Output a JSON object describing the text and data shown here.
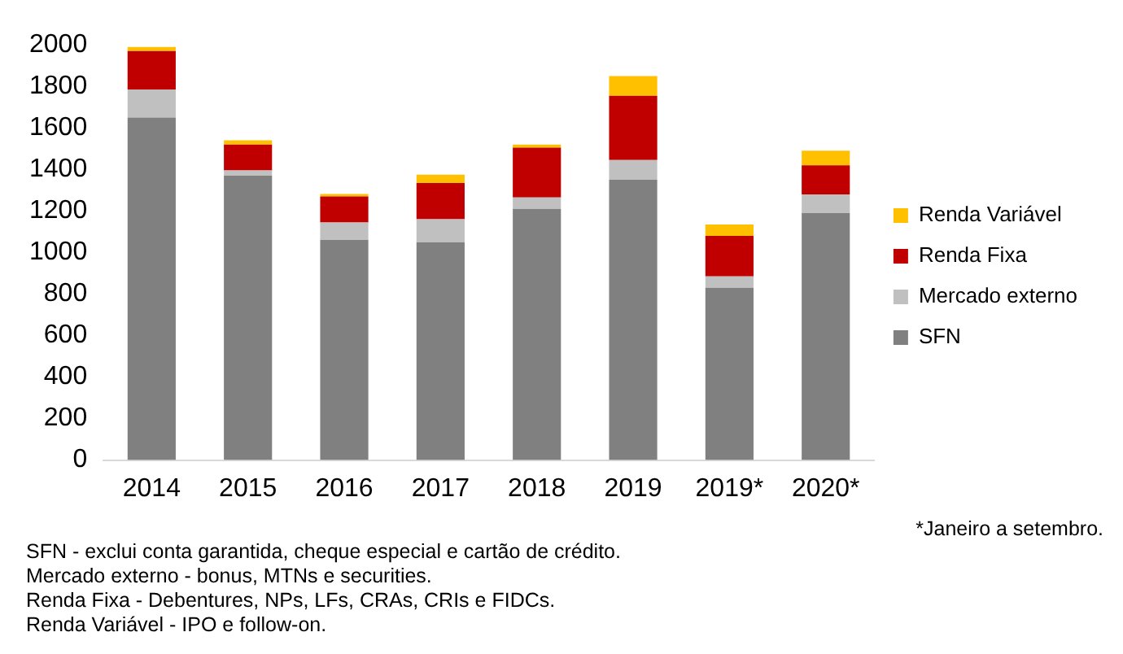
{
  "chart_data": {
    "type": "bar",
    "stacked": true,
    "categories": [
      "2014",
      "2015",
      "2016",
      "2017",
      "2018",
      "2019",
      "2019*",
      "2020*"
    ],
    "series": [
      {
        "name": "SFN",
        "color": "#808080",
        "values": [
          1650,
          1370,
          1060,
          1050,
          1210,
          1350,
          830,
          1190
        ]
      },
      {
        "name": "Mercado externo",
        "color": "#c0c0c0",
        "values": [
          135,
          25,
          85,
          110,
          55,
          95,
          55,
          90
        ]
      },
      {
        "name": "Renda Fixa",
        "color": "#c00000",
        "values": [
          185,
          125,
          125,
          175,
          240,
          310,
          195,
          140
        ]
      },
      {
        "name": "Renda Variável",
        "color": "#ffc000",
        "values": [
          20,
          20,
          12,
          40,
          15,
          95,
          55,
          70
        ]
      }
    ],
    "ylim": [
      0,
      2000
    ],
    "yticks": [
      0,
      200,
      400,
      600,
      800,
      1000,
      1200,
      1400,
      1600,
      1800,
      2000
    ],
    "grid": false,
    "legend": "right",
    "annotations": [
      "*Janeiro a setembro.",
      "SFN - exclui conta garantida, cheque especial e cartão de crédito.",
      "Mercado externo - bonus, MTNs e securities.",
      "Renda Fixa - Debentures, NPs, LFs, CRAs, CRIs e FIDCs.",
      "Renda Variável - IPO e follow-on."
    ]
  }
}
